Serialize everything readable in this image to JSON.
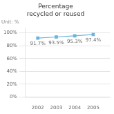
{
  "chart_data": {
    "type": "line",
    "title": "Percentage\nrecycled or reused",
    "annotations": [
      "Unit: %"
    ],
    "x": [
      2002,
      2003,
      2004,
      2005
    ],
    "values": [
      91.7,
      93.5,
      95.3,
      97.4
    ],
    "value_labels": [
      "91.7%",
      "93.5%",
      "95.3%",
      "97.4%"
    ],
    "data_labels": true,
    "color": "#6ab4e0",
    "marker": "square",
    "xlim": [
      2001.3,
      2005.9
    ],
    "xticks": [
      2002,
      2003,
      2004,
      2005
    ],
    "ylim": [
      0,
      108
    ],
    "yticks": [
      {
        "value": 0,
        "label": "0%"
      },
      {
        "value": 20,
        "label": "20%"
      },
      {
        "value": 40,
        "label": "40%"
      },
      {
        "value": 60,
        "label": "60%"
      },
      {
        "value": 80,
        "label": "80%"
      },
      {
        "value": 100,
        "label": "100%"
      }
    ],
    "grid": "y"
  }
}
